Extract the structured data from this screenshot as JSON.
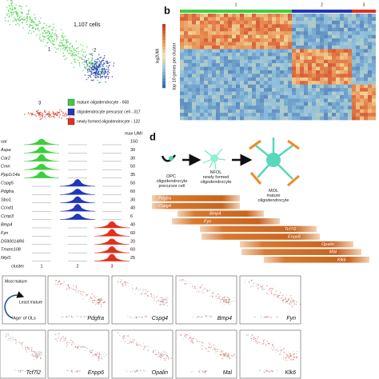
{
  "tsne": {
    "cell_count": "1,107 cells",
    "cluster_labels": [
      "1",
      "2",
      "3"
    ],
    "legend": [
      {
        "label": "mature oligodendrocyte - 658",
        "color": "#3ccf3c"
      },
      {
        "label": "oligodendrocyte precursor cell - 317",
        "color": "#2236b8"
      },
      {
        "label": "newly formed oligodendrocyte - 132",
        "color": "#e0301e"
      }
    ]
  },
  "heatmap": {
    "panel_label": "b",
    "cluster_labels": [
      "1",
      "2",
      "3"
    ],
    "colorbar_label": "log2UMI",
    "y_label": "top 10 genes per cluster"
  },
  "violins": {
    "max_label": "max UMI",
    "x_label": "cluster",
    "clusters": [
      "1",
      "2",
      "3"
    ],
    "genes": [
      {
        "name": "ual",
        "max": 150
      },
      {
        "name": "Aspa",
        "max": 30
      },
      {
        "name": "Car2",
        "max": 30
      },
      {
        "name": "Cmn",
        "max": 50
      },
      {
        "name": "Ppp1r14a",
        "max": 35
      },
      {
        "name": "Cspg5",
        "max": 50
      },
      {
        "name": "Pdgfra",
        "max": 60
      },
      {
        "name": "Sbo1",
        "max": 30
      },
      {
        "name": "Ccnd1",
        "max": 40
      },
      {
        "name": "Ccnp3",
        "max": 6
      },
      {
        "name": "Bmp4",
        "max": 40
      },
      {
        "name": "Fyn",
        "max": 60
      },
      {
        "name": "D590014R6",
        "max": 20
      },
      {
        "name": "Tmem108",
        "max": 60
      },
      {
        "name": "Nfyl1",
        "max": 25
      }
    ]
  },
  "schematic": {
    "panel_label": "d",
    "stages": [
      {
        "abbr": "OPC",
        "name": "oligodendrocyte precursor cell"
      },
      {
        "abbr": "NFOL",
        "name": "newly formed oligodendrocyte"
      },
      {
        "abbr": "MOL",
        "name": "mature oligodendrocyte"
      }
    ],
    "markers": [
      "Pdgfra",
      "Cspg4",
      "Bmp4",
      "Fyn",
      "Tcf7l2",
      "Enpp6",
      "Opalin",
      "Mal",
      "Klk6"
    ]
  },
  "feature_maps": {
    "legend": {
      "top": "Most mature",
      "bottom": "Least mature",
      "caption": "'Age' of OLs"
    },
    "genes": [
      "Pdgfra",
      "Cspg4",
      "Bmp4",
      "Fyn",
      "Tcf7l2",
      "Enpp6",
      "Opalin",
      "Mal",
      "Klk6"
    ]
  }
}
